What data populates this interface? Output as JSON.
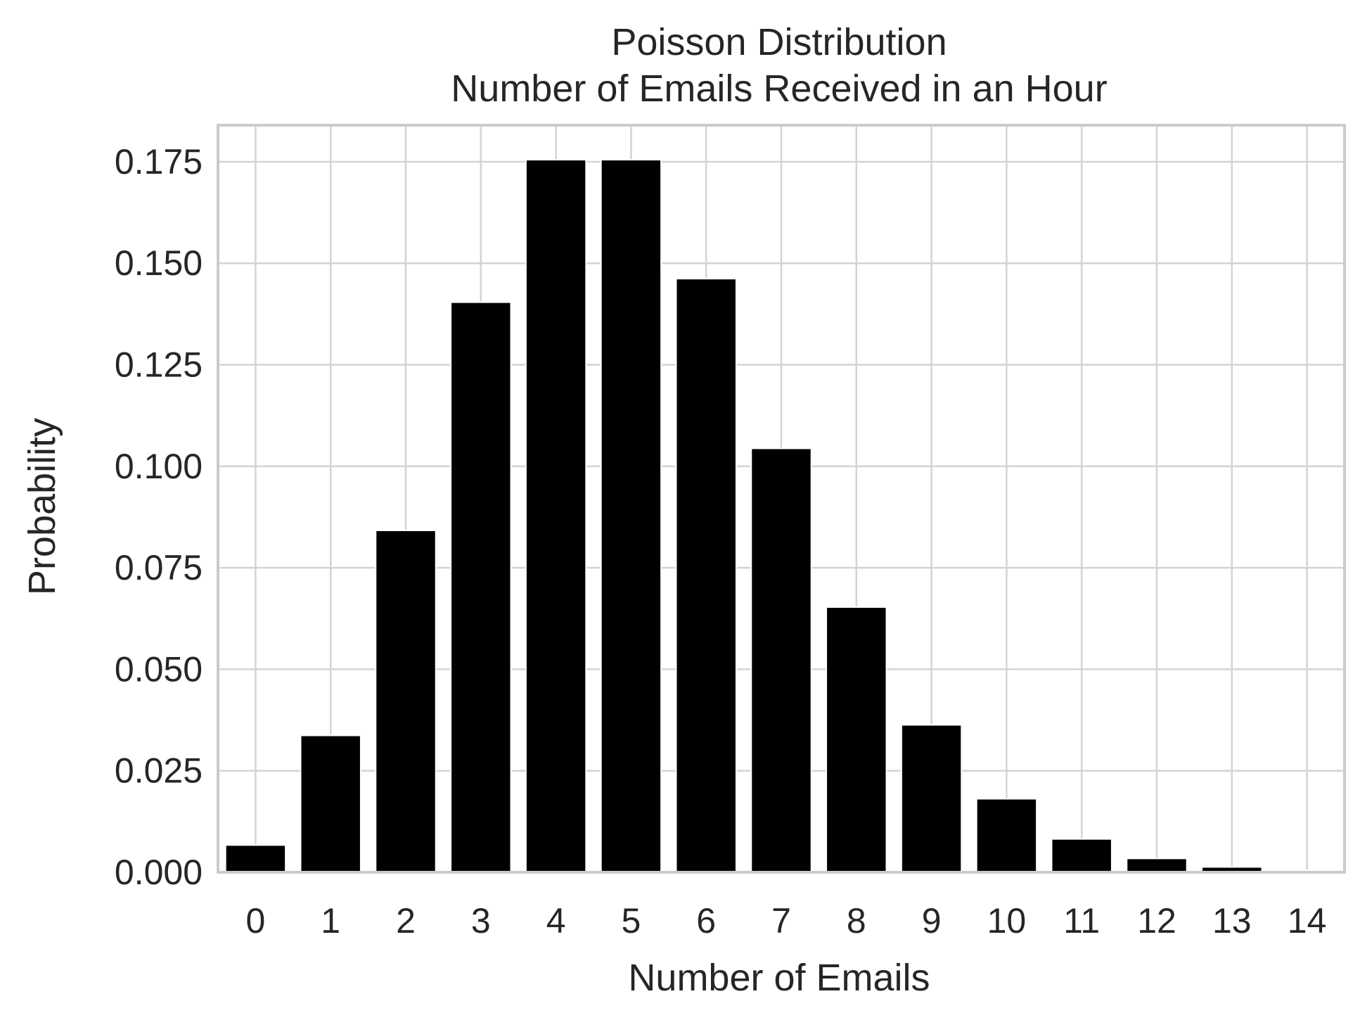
{
  "chart_data": {
    "type": "bar",
    "title": "Poisson Distribution",
    "subtitle": "Number of Emails Received in an Hour",
    "xlabel": "Number of Emails",
    "ylabel": "Probability",
    "categories": [
      "0",
      "1",
      "2",
      "3",
      "4",
      "5",
      "6",
      "7",
      "8",
      "9",
      "10",
      "11",
      "12",
      "13",
      "14"
    ],
    "values": [
      0.0067,
      0.0337,
      0.0842,
      0.1404,
      0.1755,
      0.1755,
      0.1462,
      0.1044,
      0.0653,
      0.0363,
      0.0181,
      0.0082,
      0.0034,
      0.0013,
      0.0005
    ],
    "ylim": [
      0,
      0.184
    ],
    "yticks": [
      0.0,
      0.025,
      0.05,
      0.075,
      0.1,
      0.125,
      0.15,
      0.175
    ],
    "ytick_labels": [
      "0.000",
      "0.025",
      "0.050",
      "0.075",
      "0.100",
      "0.125",
      "0.150",
      "0.175"
    ],
    "grid": true,
    "colors": {
      "bar_fill": "#000000",
      "bar_edge": "#ffffff",
      "grid": "#d3d3d3",
      "spine": "#cccccc",
      "text": "#262626",
      "background": "#ffffff"
    }
  }
}
